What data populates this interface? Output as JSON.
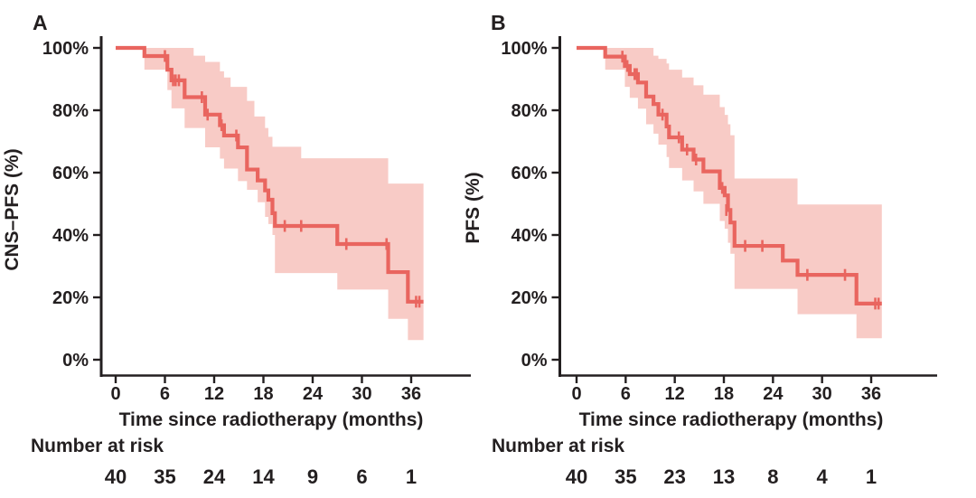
{
  "figure": {
    "background": "#ffffff",
    "text_color": "#231f20",
    "curve_color": "#E9655F",
    "band_color": "#F8CBC6"
  },
  "chart_data": [
    {
      "type": "line",
      "subtype": "kaplan-meier-step",
      "panel_label": "A",
      "xlabel": "Time since radiotherapy (months)",
      "ylabel": "CNS–PFS (%)",
      "xlim": [
        0,
        38
      ],
      "ylim": [
        0,
        100
      ],
      "x_ticks": [
        0,
        6,
        12,
        18,
        24,
        30,
        36
      ],
      "y_ticks": [
        0,
        20,
        40,
        60,
        80,
        100
      ],
      "y_tick_labels": [
        "0%",
        "20%",
        "40%",
        "60%",
        "80%",
        "100%"
      ],
      "grid": false,
      "legend": "none",
      "series": [
        {
          "name": "CNS-PFS",
          "end_t": 37.5,
          "steps": [
            [
              0,
              100
            ],
            [
              3.5,
              97.4
            ],
            [
              6.3,
              93.0
            ],
            [
              6.8,
              89.6
            ],
            [
              8.4,
              84.2
            ],
            [
              10.9,
              78.6
            ],
            [
              12.7,
              75.2
            ],
            [
              13.2,
              71.9
            ],
            [
              14.9,
              68.1
            ],
            [
              16.0,
              61.0
            ],
            [
              17.3,
              57.5
            ],
            [
              18.2,
              54.3
            ],
            [
              18.6,
              51.3
            ],
            [
              19.1,
              47.0
            ],
            [
              19.4,
              42.9
            ],
            [
              27.0,
              37.1
            ],
            [
              33.2,
              28.1
            ],
            [
              35.6,
              18.6
            ]
          ],
          "censors": [
            [
              6.0,
              97.4
            ],
            [
              7.0,
              89.6
            ],
            [
              7.3,
              89.6
            ],
            [
              7.7,
              89.6
            ],
            [
              10.5,
              84.2
            ],
            [
              11.2,
              78.6
            ],
            [
              12.9,
              75.2
            ],
            [
              14.7,
              71.9
            ],
            [
              20.6,
              42.9
            ],
            [
              22.6,
              42.9
            ],
            [
              28.1,
              37.1
            ],
            [
              33.0,
              37.1
            ],
            [
              36.6,
              18.6
            ],
            [
              37.0,
              18.6
            ]
          ],
          "ci_steps": [
            [
              3.5,
              93.0,
              100
            ],
            [
              6.3,
              86.5,
              100
            ],
            [
              6.8,
              80.6,
              100
            ],
            [
              8.4,
              74.3,
              100
            ],
            [
              9.5,
              74.3,
              97.5
            ],
            [
              10.9,
              68.1,
              95.5
            ],
            [
              12.7,
              64.5,
              92.5
            ],
            [
              13.2,
              61.3,
              90.5
            ],
            [
              14.0,
              61.3,
              87.5
            ],
            [
              14.9,
              57.3,
              87.5
            ],
            [
              16.0,
              54.5,
              83.0
            ],
            [
              16.9,
              54.5,
              78.0
            ],
            [
              17.3,
              50.5,
              78.0
            ],
            [
              18.2,
              45.8,
              74.3
            ],
            [
              18.6,
              43.5,
              71.5
            ],
            [
              19.1,
              40.0,
              68.3
            ],
            [
              19.4,
              27.8,
              68.3
            ],
            [
              22.6,
              27.8,
              64.6
            ],
            [
              27.0,
              22.5,
              64.6
            ],
            [
              33.2,
              13.1,
              56.5
            ],
            [
              35.6,
              6.3,
              56.5
            ]
          ]
        }
      ],
      "number_at_risk": {
        "label": "Number at risk",
        "times": [
          0,
          6,
          12,
          18,
          24,
          30,
          36
        ],
        "values": [
          40,
          35,
          24,
          14,
          9,
          6,
          1
        ]
      }
    },
    {
      "type": "line",
      "subtype": "kaplan-meier-step",
      "panel_label": "B",
      "xlabel": "Time since radiotherapy (months)",
      "ylabel": "PFS (%)",
      "xlim": [
        0,
        38
      ],
      "ylim": [
        0,
        100
      ],
      "x_ticks": [
        0,
        6,
        12,
        18,
        24,
        30,
        36
      ],
      "y_ticks": [
        0,
        20,
        40,
        60,
        80,
        100
      ],
      "y_tick_labels": [
        "0%",
        "20%",
        "40%",
        "60%",
        "80%",
        "100%"
      ],
      "grid": false,
      "legend": "none",
      "series": [
        {
          "name": "PFS",
          "end_t": 37.3,
          "steps": [
            [
              0,
              100
            ],
            [
              3.5,
              97.2
            ],
            [
              5.9,
              94.2
            ],
            [
              6.5,
              91.6
            ],
            [
              7.5,
              88.9
            ],
            [
              8.5,
              84.4
            ],
            [
              9.4,
              82.0
            ],
            [
              10.0,
              78.6
            ],
            [
              11.0,
              74.8
            ],
            [
              11.3,
              71.3
            ],
            [
              12.9,
              67.4
            ],
            [
              14.3,
              64.2
            ],
            [
              15.5,
              60.4
            ],
            [
              17.5,
              55.1
            ],
            [
              18.1,
              52.7
            ],
            [
              18.5,
              48.0
            ],
            [
              18.8,
              44.0
            ],
            [
              19.3,
              36.5
            ],
            [
              25.2,
              31.8
            ],
            [
              27.0,
              27.2
            ],
            [
              34.2,
              18.0
            ]
          ],
          "censors": [
            [
              5.6,
              97.2
            ],
            [
              6.2,
              94.2
            ],
            [
              7.1,
              91.6
            ],
            [
              7.35,
              91.6
            ],
            [
              10.5,
              78.6
            ],
            [
              12.5,
              71.3
            ],
            [
              13.5,
              67.4
            ],
            [
              14.6,
              64.2
            ],
            [
              17.8,
              55.1
            ],
            [
              18.3,
              48.0
            ],
            [
              20.6,
              36.5
            ],
            [
              22.7,
              36.5
            ],
            [
              28.2,
              27.2
            ],
            [
              32.8,
              27.2
            ],
            [
              36.5,
              18.0
            ],
            [
              36.9,
              18.0
            ]
          ],
          "ci_steps": [
            [
              3.5,
              93.0,
              100
            ],
            [
              5.9,
              87.5,
              100
            ],
            [
              6.5,
              84.0,
              100
            ],
            [
              7.5,
              80.5,
              100
            ],
            [
              8.5,
              75.5,
              100
            ],
            [
              9.4,
              72.5,
              97.5
            ],
            [
              10.0,
              69.0,
              96.5
            ],
            [
              11.0,
              65.0,
              95.0
            ],
            [
              11.3,
              61.5,
              93.0
            ],
            [
              12.9,
              57.5,
              90.5
            ],
            [
              14.3,
              54.0,
              88.0
            ],
            [
              15.5,
              50.0,
              85.0
            ],
            [
              17.5,
              44.5,
              81.0
            ],
            [
              18.1,
              42.0,
              78.5
            ],
            [
              18.5,
              37.5,
              75.5
            ],
            [
              18.8,
              34.0,
              72.0
            ],
            [
              19.3,
              22.7,
              58.1
            ],
            [
              25.2,
              22.7,
              58.1
            ],
            [
              27.0,
              14.6,
              49.8
            ],
            [
              34.2,
              6.9,
              49.8
            ]
          ]
        }
      ],
      "number_at_risk": {
        "label": "Number at risk",
        "times": [
          0,
          6,
          12,
          18,
          24,
          30,
          36
        ],
        "values": [
          40,
          35,
          23,
          13,
          8,
          4,
          1
        ]
      }
    }
  ]
}
